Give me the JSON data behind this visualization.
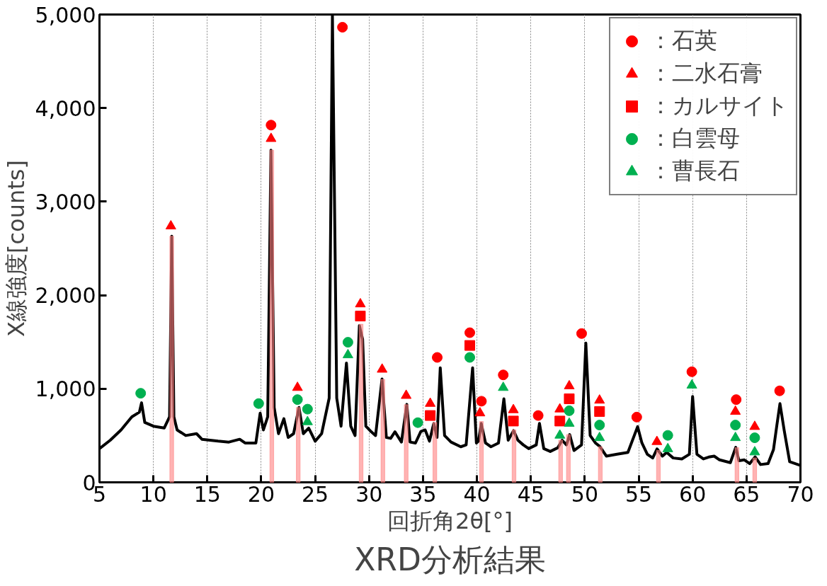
{
  "chart_data": {
    "type": "line",
    "title": "XRD分析結果",
    "xlabel": "回折角2θ[°]",
    "ylabel": "X線強度[counts]",
    "xlim": [
      5,
      70
    ],
    "xticks": [
      5,
      10,
      15,
      20,
      25,
      30,
      35,
      40,
      45,
      50,
      55,
      60,
      65,
      70
    ],
    "ylim": [
      0,
      5000
    ],
    "yticks": [
      0,
      {
        "value": 1000,
        "label": "1,000"
      },
      {
        "value": 2000,
        "label": "2,000"
      },
      {
        "value": 3000,
        "label": "3,000"
      },
      {
        "value": 4000,
        "label": "4,000"
      },
      {
        "value": 5000,
        "label": "5,000"
      }
    ],
    "grid": "x",
    "legend": "top right",
    "series": [
      {
        "type": "bar",
        "color": "#ff8080",
        "x": [
          11.7,
          20.98,
          23.43,
          29.26,
          31.28,
          33.44,
          36.1,
          40.42,
          43.44,
          47.76,
          48.48,
          51.44,
          56.83,
          64.11,
          65.76
        ],
        "values": [
          2630,
          3550,
          800,
          1690,
          1100,
          830,
          640,
          650,
          560,
          450,
          510,
          380,
          340,
          370,
          260
        ]
      },
      {
        "color": "#000000",
        "marker": "none",
        "x": [
          5,
          6,
          7,
          8,
          8.7,
          8.9,
          9.2,
          10,
          11,
          11.5,
          11.7,
          11.9,
          12.2,
          13,
          14,
          14.5,
          16,
          17,
          18,
          18.5,
          19.5,
          19.9,
          20.2,
          20.6,
          20.9,
          21.2,
          21.6,
          22.1,
          22.5,
          23,
          23.5,
          23.9,
          24.4,
          25,
          25.6,
          26.3,
          26.6,
          27,
          27.4,
          27.9,
          28.3,
          28.7,
          29.1,
          29.4,
          29.7,
          30.2,
          30.6,
          31.2,
          31.6,
          32,
          32.4,
          33,
          33.5,
          33.8,
          34.3,
          34.8,
          35.2,
          35.6,
          36,
          36.3,
          36.6,
          37,
          37.6,
          38.5,
          39,
          39.6,
          39.95,
          40.15,
          40.4,
          40.8,
          41.3,
          42,
          42.5,
          42.9,
          43.4,
          43.8,
          44.3,
          44.8,
          45.5,
          45.8,
          46.2,
          46.8,
          47.5,
          47.9,
          48.3,
          48.6,
          49,
          49.7,
          50.1,
          50.5,
          51,
          51.4,
          52,
          53,
          54,
          54.9,
          55.3,
          55.8,
          56.3,
          56.7,
          57.2,
          57.6,
          58.2,
          59,
          59.7,
          60,
          60.4,
          61,
          61.5,
          62,
          62.5,
          63.5,
          64,
          64.3,
          64.8,
          65.3,
          65.8,
          66.3,
          67,
          67.5,
          67.8,
          68.1,
          68.5,
          69,
          70
        ],
        "values": [
          360,
          450,
          560,
          700,
          750,
          850,
          640,
          600,
          580,
          700,
          2630,
          700,
          560,
          500,
          520,
          460,
          440,
          430,
          460,
          420,
          420,
          740,
          560,
          700,
          3550,
          800,
          520,
          680,
          480,
          520,
          800,
          520,
          580,
          440,
          520,
          900,
          5000,
          900,
          600,
          1275,
          600,
          500,
          1675,
          1530,
          600,
          540,
          500,
          1105,
          480,
          470,
          540,
          430,
          833,
          430,
          420,
          544,
          560,
          440,
          629,
          480,
          1224,
          500,
          430,
          380,
          400,
          1224,
          420,
          440,
          629,
          420,
          380,
          420,
          893,
          450,
          553,
          450,
          400,
          360,
          400,
          629,
          360,
          330,
          370,
          450,
          400,
          510,
          340,
          400,
          1488,
          500,
          420,
          383,
          280,
          300,
          320,
          595,
          420,
          300,
          260,
          357,
          280,
          320,
          260,
          250,
          300,
          918,
          300,
          250,
          270,
          280,
          240,
          210,
          374,
          230,
          240,
          200,
          272,
          190,
          200,
          350,
          600,
          842,
          550,
          220,
          180
        ]
      },
      {
        "type": "scatter",
        "name": "：石英",
        "color": "#ff0000",
        "marker": "circle",
        "x": [
          27.53,
          20.91,
          36.32,
          39.34,
          40.42,
          42.44,
          45.68,
          49.71,
          54.82,
          59.93,
          64.04,
          68.07
        ],
        "values": [
          4864,
          3818,
          1335,
          1599,
          867,
          1148,
          714,
          1590,
          697,
          1182,
          884,
          978
        ]
      },
      {
        "type": "scatter",
        "name": "：二水石膏",
        "color": "#ff0000",
        "marker": "triangle",
        "x": [
          11.62,
          20.91,
          23.36,
          29.19,
          31.21,
          33.44,
          35.67,
          40.28,
          43.38,
          47.69,
          48.56,
          51.37,
          56.69,
          63.97,
          65.76
        ],
        "values": [
          2738,
          3673,
          1012,
          1905,
          1207,
          927,
          842,
          740,
          774,
          782,
          1029,
          876,
          434,
          757,
          595
        ]
      },
      {
        "type": "scatter",
        "name": "：カルサイト",
        "color": "#ff0000",
        "marker": "square",
        "x": [
          29.19,
          35.67,
          39.34,
          43.38,
          47.69,
          48.56,
          51.37
        ],
        "values": [
          1777,
          714,
          1463,
          655,
          655,
          893,
          757
        ]
      },
      {
        "type": "scatter",
        "name": "：白雲母",
        "color": "#00b050",
        "marker": "circle",
        "x": [
          8.82,
          19.76,
          23.36,
          24.29,
          28.04,
          34.52,
          39.34,
          48.56,
          51.37,
          57.7,
          63.97,
          65.76
        ],
        "values": [
          952,
          842,
          884,
          782,
          1497,
          638,
          1335,
          765,
          612,
          502,
          612,
          476
        ]
      },
      {
        "type": "scatter",
        "name": "：曹長石",
        "color": "#00b050",
        "marker": "triangle",
        "x": [
          24.29,
          28.04,
          42.44,
          47.69,
          48.56,
          51.37,
          57.7,
          59.93,
          63.97,
          65.76
        ],
        "values": [
          646,
          1361,
          1012,
          502,
          629,
          476,
          357,
          1037,
          476,
          323
        ]
      }
    ]
  }
}
